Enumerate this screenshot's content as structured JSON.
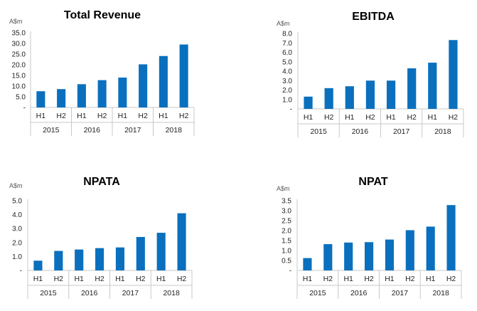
{
  "chart_data": [
    {
      "type": "bar",
      "title": "Total Revenue",
      "ylabel": "A$m",
      "ylim": [
        0,
        35
      ],
      "yticks": [
        "-",
        "5.0",
        "10.0",
        "15.0",
        "20.0",
        "25.0",
        "30.0",
        "35.0"
      ],
      "categories": [
        "H1",
        "H2",
        "H1",
        "H2",
        "H1",
        "H2",
        "H1",
        "H2"
      ],
      "groups": [
        "2015",
        "2016",
        "2017",
        "2018"
      ],
      "values": [
        7.6,
        8.6,
        10.9,
        12.8,
        14.0,
        20.2,
        24.1,
        29.5
      ],
      "color": "#0a70be"
    },
    {
      "type": "bar",
      "title": "EBITDA",
      "ylabel": "A$m",
      "ylim": [
        0,
        8
      ],
      "yticks": [
        "-",
        "1.0",
        "2.0",
        "3.0",
        "4.0",
        "5.0",
        "6.0",
        "7.0",
        "8.0"
      ],
      "categories": [
        "H1",
        "H2",
        "H1",
        "H2",
        "H1",
        "H2",
        "H1",
        "H2"
      ],
      "groups": [
        "2015",
        "2016",
        "2017",
        "2018"
      ],
      "values": [
        1.3,
        2.2,
        2.4,
        3.0,
        3.0,
        4.3,
        4.9,
        7.3
      ],
      "color": "#0a70be"
    },
    {
      "type": "bar",
      "title": "NPATA",
      "ylabel": "A$m",
      "ylim": [
        0,
        5
      ],
      "yticks": [
        "-",
        "1.0",
        "2.0",
        "3.0",
        "4.0",
        "5.0"
      ],
      "categories": [
        "H1",
        "H2",
        "H1",
        "H2",
        "H1",
        "H2",
        "H1",
        "H2"
      ],
      "groups": [
        "2015",
        "2016",
        "2017",
        "2018"
      ],
      "values": [
        0.7,
        1.4,
        1.5,
        1.6,
        1.65,
        2.4,
        2.7,
        4.1
      ],
      "color": "#0a70be"
    },
    {
      "type": "bar",
      "title": "NPAT",
      "ylabel": "A$m",
      "ylim": [
        0,
        3.5
      ],
      "yticks": [
        "-",
        "0.5",
        "1.0",
        "1.5",
        "2.0",
        "2.5",
        "3.0",
        "3.5"
      ],
      "categories": [
        "H1",
        "H2",
        "H1",
        "H2",
        "H1",
        "H2",
        "H1",
        "H2"
      ],
      "groups": [
        "2015",
        "2016",
        "2017",
        "2018"
      ],
      "values": [
        0.62,
        1.32,
        1.4,
        1.42,
        1.55,
        2.02,
        2.2,
        3.28
      ],
      "color": "#0a70be"
    }
  ]
}
